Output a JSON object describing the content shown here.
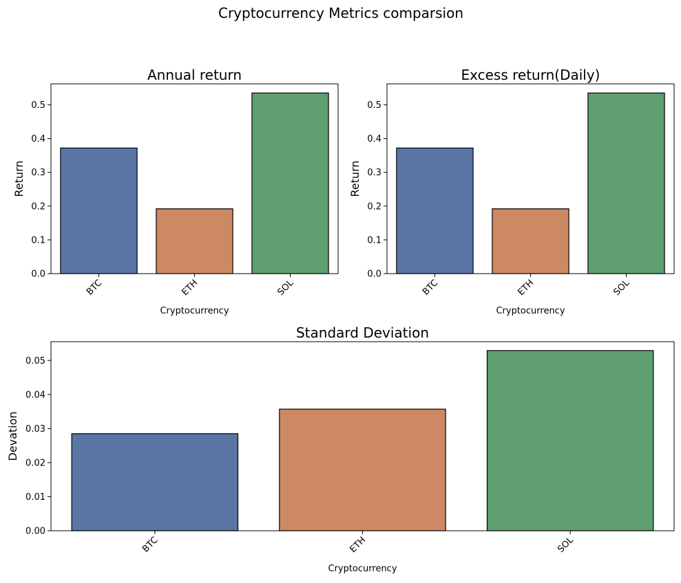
{
  "figure": {
    "suptitle": "Cryptocurrency Metrics comparsion"
  },
  "chart_data": [
    {
      "type": "bar",
      "title": "Annual return",
      "xlabel": "Cryptocurrency",
      "ylabel": "Return",
      "categories": [
        "BTC",
        "ETH",
        "SOL"
      ],
      "values": [
        0.372,
        0.192,
        0.535
      ],
      "ylim": [
        0,
        0.562
      ],
      "yticks": [
        0.0,
        0.1,
        0.2,
        0.3,
        0.4,
        0.5
      ],
      "ytick_labels": [
        "0.0",
        "0.1",
        "0.2",
        "0.3",
        "0.4",
        "0.5"
      ],
      "colors": [
        "#5975a4",
        "#cc8963",
        "#5f9e6e"
      ],
      "edgecolor": "#000000",
      "grid": false,
      "xtick_rotation": 45
    },
    {
      "type": "bar",
      "title": "Excess return(Daily)",
      "xlabel": "Cryptocurrency",
      "ylabel": "Return",
      "categories": [
        "BTC",
        "ETH",
        "SOL"
      ],
      "values": [
        0.372,
        0.192,
        0.535
      ],
      "ylim": [
        0,
        0.562
      ],
      "yticks": [
        0.0,
        0.1,
        0.2,
        0.3,
        0.4,
        0.5
      ],
      "ytick_labels": [
        "0.0",
        "0.1",
        "0.2",
        "0.3",
        "0.4",
        "0.5"
      ],
      "colors": [
        "#5975a4",
        "#cc8963",
        "#5f9e6e"
      ],
      "edgecolor": "#000000",
      "grid": false,
      "xtick_rotation": 45
    },
    {
      "type": "bar",
      "title": "Standard Deviation",
      "xlabel": "Cryptocurrency",
      "ylabel": "Devation",
      "categories": [
        "BTC",
        "ETH",
        "SOL"
      ],
      "values": [
        0.0285,
        0.0357,
        0.0529
      ],
      "ylim": [
        0,
        0.0555
      ],
      "yticks": [
        0.0,
        0.01,
        0.02,
        0.03,
        0.04,
        0.05
      ],
      "ytick_labels": [
        "0.00",
        "0.01",
        "0.02",
        "0.03",
        "0.04",
        "0.05"
      ],
      "colors": [
        "#5975a4",
        "#cc8963",
        "#5f9e6e"
      ],
      "edgecolor": "#000000",
      "grid": false,
      "xtick_rotation": 45
    }
  ]
}
